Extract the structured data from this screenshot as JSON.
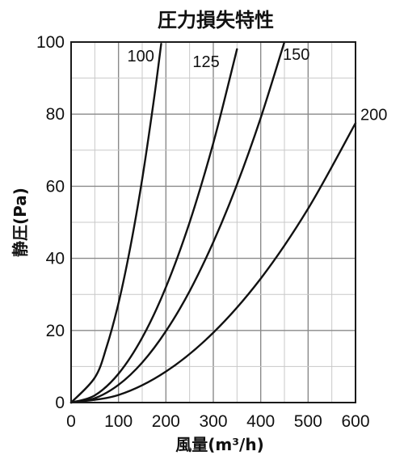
{
  "chart_data": {
    "type": "line",
    "title": "圧力損失特性",
    "xlabel": "風量(m³/h)",
    "ylabel": "静圧(Pa)",
    "xlim": [
      0,
      600
    ],
    "ylim": [
      0,
      100
    ],
    "x_ticks": [
      "0",
      "100",
      "200",
      "300",
      "400",
      "500",
      "600"
    ],
    "y_ticks": [
      "0",
      "20",
      "40",
      "60",
      "80",
      "100"
    ],
    "grid": true,
    "series": [
      {
        "name": "100",
        "x": [
          0,
          50,
          75,
          100,
          125,
          150,
          175,
          190
        ],
        "y": [
          0,
          6.9,
          15.5,
          27.6,
          43.1,
          62.0,
          84.4,
          99.5
        ]
      },
      {
        "name": "125",
        "x": [
          0,
          50,
          100,
          150,
          200,
          250,
          300,
          350
        ],
        "y": [
          0,
          2.0,
          8.0,
          18.0,
          32.0,
          50.0,
          72.0,
          98.0
        ]
      },
      {
        "name": "150",
        "x": [
          0,
          50,
          100,
          150,
          200,
          250,
          300,
          350,
          400,
          450
        ],
        "y": [
          0,
          1.2,
          4.9,
          11.1,
          19.8,
          30.9,
          44.5,
          60.5,
          79.0,
          100.0
        ]
      },
      {
        "name": "200",
        "x": [
          0,
          100,
          200,
          300,
          400,
          500,
          600
        ],
        "y": [
          0,
          2.1,
          8.6,
          19.4,
          34.4,
          53.8,
          77.5
        ]
      }
    ]
  }
}
